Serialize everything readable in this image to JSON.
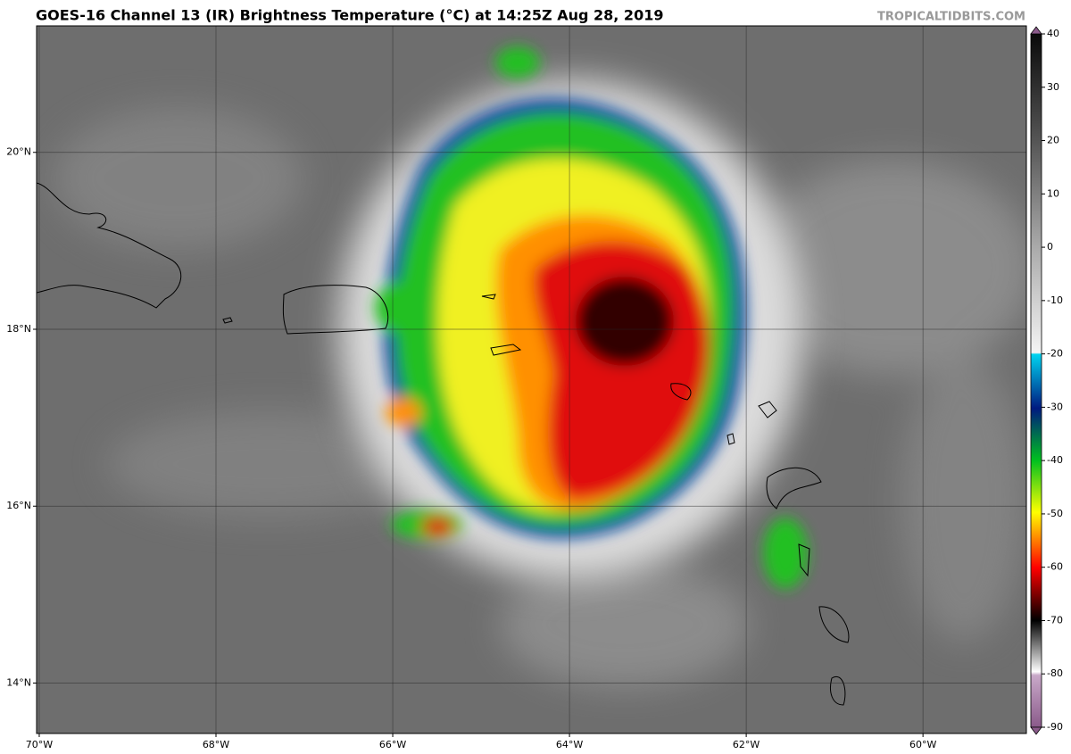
{
  "chart_data": {
    "type": "map",
    "title": "GOES-16 Channel 13 (IR) Brightness Temperature (°C) at 14:25Z Aug 28, 2019",
    "credit": "TROPICALTIDBITS.COM",
    "xlim": [
      -70.03,
      -58.83
    ],
    "ylim": [
      13.43,
      21.43
    ],
    "xticks": [
      {
        "value": -70,
        "label": "70°W"
      },
      {
        "value": -68,
        "label": "68°W"
      },
      {
        "value": -66,
        "label": "66°W"
      },
      {
        "value": -64,
        "label": "64°W"
      },
      {
        "value": -62,
        "label": "62°W"
      },
      {
        "value": -60,
        "label": "60°W"
      }
    ],
    "yticks": [
      {
        "value": 14,
        "label": "14°N"
      },
      {
        "value": 16,
        "label": "16°N"
      },
      {
        "value": 18,
        "label": "18°N"
      },
      {
        "value": 20,
        "label": "20°N"
      }
    ],
    "grid": true,
    "colorbar": {
      "lim": [
        -90,
        40
      ],
      "ticks": [
        40,
        30,
        20,
        10,
        0,
        -10,
        -20,
        -30,
        -40,
        -50,
        -60,
        -70,
        -80,
        -90
      ]
    }
  }
}
